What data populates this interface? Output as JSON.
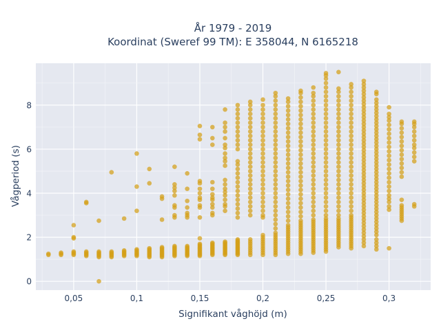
{
  "chart_data": {
    "type": "scatter",
    "title_line1": "År 1979 - 2019",
    "title_line2": "Koordinat (Sweref 99 TM): E 358044, N 6165218",
    "xlabel": "Signifikant våghöjd (m)",
    "ylabel": "Vågperiod (s)",
    "xlim": [
      0.02,
      0.333
    ],
    "ylim": [
      -0.4,
      9.9
    ],
    "x_ticks": [
      0.05,
      0.1,
      0.15,
      0.2,
      0.25,
      0.3
    ],
    "x_tick_labels": [
      "0,05",
      "0,1",
      "0,15",
      "0,2",
      "0,25",
      "0,3"
    ],
    "y_ticks": [
      0,
      2,
      4,
      6,
      8
    ],
    "y_tick_labels": [
      "0",
      "2",
      "4",
      "6",
      "8"
    ],
    "grid": true,
    "marker_color": "#D4A017",
    "plot_background": "#E5E8F0",
    "columns": [
      {
        "x": 0.03,
        "y": [
          1.2,
          1.25
        ]
      },
      {
        "x": 0.04,
        "y": [
          1.2,
          1.25,
          1.3
        ]
      },
      {
        "x": 0.05,
        "y": [
          1.2,
          1.25,
          1.3,
          1.35,
          1.95,
          2.0,
          2.55
        ]
      },
      {
        "x": 0.06,
        "y": [
          1.15,
          1.2,
          1.25,
          1.3,
          1.35,
          3.55,
          3.6
        ]
      },
      {
        "x": 0.07,
        "y": [
          0.0,
          1.1,
          1.15,
          1.2,
          1.25,
          1.3,
          1.35,
          2.75
        ]
      },
      {
        "x": 0.08,
        "y": [
          1.1,
          1.15,
          1.2,
          1.25,
          1.3,
          1.35,
          4.95
        ]
      },
      {
        "x": 0.09,
        "y": [
          1.15,
          1.2,
          1.25,
          1.3,
          1.35,
          1.4,
          2.85
        ]
      },
      {
        "x": 0.1,
        "y": [
          1.15,
          1.2,
          1.25,
          1.3,
          1.35,
          1.4,
          1.45,
          3.2,
          4.3,
          5.8
        ]
      },
      {
        "x": 0.11,
        "y": [
          1.1,
          1.15,
          1.2,
          1.25,
          1.3,
          1.35,
          1.4,
          1.45,
          1.5,
          4.45,
          5.1
        ]
      },
      {
        "x": 0.12,
        "y": [
          1.1,
          1.15,
          1.2,
          1.25,
          1.3,
          1.35,
          1.4,
          1.45,
          1.5,
          1.55,
          2.8,
          3.75,
          3.85
        ]
      },
      {
        "x": 0.13,
        "y": [
          1.15,
          1.2,
          1.25,
          1.3,
          1.35,
          1.4,
          1.45,
          1.5,
          1.55,
          1.6,
          2.9,
          3.0,
          3.35,
          3.45,
          3.9,
          4.1,
          4.25,
          4.4,
          5.2
        ]
      },
      {
        "x": 0.14,
        "y": [
          1.15,
          1.2,
          1.25,
          1.3,
          1.35,
          1.4,
          1.45,
          1.5,
          1.55,
          1.6,
          2.9,
          3.0,
          3.1,
          3.35,
          3.65,
          4.2,
          4.9
        ]
      },
      {
        "x": 0.15,
        "y": [
          1.15,
          1.2,
          1.25,
          1.3,
          1.35,
          1.4,
          1.45,
          1.5,
          1.55,
          1.6,
          1.65,
          1.7,
          1.95,
          2.9,
          3.35,
          3.45,
          3.7,
          3.8,
          4.0,
          4.2,
          4.45,
          4.55,
          6.45,
          6.65,
          7.05
        ]
      },
      {
        "x": 0.16,
        "y": [
          1.2,
          1.25,
          1.3,
          1.35,
          1.4,
          1.45,
          1.5,
          1.55,
          1.6,
          1.65,
          1.7,
          1.75,
          3.0,
          3.1,
          3.35,
          3.5,
          3.7,
          3.8,
          3.95,
          4.2,
          4.5,
          6.2,
          6.5,
          7.0
        ]
      },
      {
        "x": 0.17,
        "y": [
          1.2,
          1.25,
          1.3,
          1.35,
          1.4,
          1.45,
          1.5,
          1.55,
          1.6,
          1.65,
          1.7,
          1.75,
          1.8,
          3.2,
          3.4,
          3.5,
          3.7,
          3.9,
          4.05,
          4.2,
          4.4,
          4.6,
          5.25,
          5.45,
          5.6,
          5.8,
          6.05,
          6.2,
          6.5,
          6.8,
          7.0,
          7.2,
          7.8
        ]
      },
      {
        "x": 0.18,
        "y": [
          1.2,
          1.25,
          1.3,
          1.35,
          1.4,
          1.45,
          1.5,
          1.55,
          1.6,
          1.65,
          1.7,
          1.75,
          1.8,
          1.85,
          1.9,
          2.9,
          3.1,
          3.3,
          3.5,
          3.7,
          3.9,
          4.1,
          4.3,
          4.5,
          4.7,
          4.9,
          5.1,
          5.3,
          5.45,
          6.0,
          6.2,
          6.4,
          6.6,
          6.8,
          7.0,
          7.2,
          7.4,
          7.6,
          7.8,
          8.0
        ]
      },
      {
        "x": 0.19,
        "y": [
          1.2,
          1.3,
          1.4,
          1.5,
          1.6,
          1.7,
          1.8,
          1.9,
          3.0,
          3.2,
          3.4,
          3.6,
          3.8,
          4.0,
          4.2,
          4.4,
          4.6,
          4.8,
          5.0,
          5.2,
          5.4,
          5.6,
          5.8,
          6.0,
          6.2,
          6.4,
          6.6,
          6.8,
          7.0,
          7.2,
          7.4,
          7.6,
          7.8,
          8.0,
          8.15
        ]
      },
      {
        "x": 0.2,
        "y": [
          1.2,
          1.3,
          1.4,
          1.5,
          1.6,
          1.7,
          1.8,
          1.9,
          2.0,
          2.1,
          2.9,
          3.0,
          3.2,
          3.4,
          3.6,
          3.8,
          4.0,
          4.2,
          4.4,
          4.6,
          4.8,
          5.0,
          5.2,
          5.4,
          5.6,
          5.8,
          6.0,
          6.2,
          6.4,
          6.6,
          6.8,
          7.0,
          7.2,
          7.4,
          7.6,
          7.8,
          8.0,
          8.25
        ]
      },
      {
        "x": 0.21,
        "y": [
          1.2,
          1.3,
          1.4,
          1.5,
          1.6,
          1.7,
          1.8,
          1.9,
          2.0,
          2.1,
          2.2,
          2.4,
          2.6,
          2.8,
          3.0,
          3.2,
          3.4,
          3.6,
          3.8,
          4.0,
          4.2,
          4.4,
          4.6,
          4.8,
          5.0,
          5.2,
          5.4,
          5.6,
          5.8,
          6.0,
          6.2,
          6.4,
          6.6,
          6.8,
          7.0,
          7.2,
          7.4,
          7.6,
          7.8,
          8.0,
          8.2,
          8.4,
          8.55
        ]
      },
      {
        "x": 0.22,
        "y": [
          1.25,
          1.35,
          1.45,
          1.55,
          1.65,
          1.75,
          1.85,
          1.95,
          2.05,
          2.15,
          2.25,
          2.35,
          2.45,
          2.55,
          2.75,
          2.95,
          3.15,
          3.35,
          3.55,
          3.75,
          3.95,
          4.15,
          4.35,
          4.55,
          4.75,
          4.95,
          5.15,
          5.35,
          5.55,
          5.75,
          5.95,
          6.15,
          6.35,
          6.55,
          6.75,
          6.95,
          7.15,
          7.35,
          7.55,
          7.75,
          7.95,
          8.15,
          8.3
        ]
      },
      {
        "x": 0.23,
        "y": [
          1.25,
          1.35,
          1.45,
          1.55,
          1.65,
          1.75,
          1.85,
          1.95,
          2.05,
          2.15,
          2.25,
          2.35,
          2.45,
          2.55,
          2.65,
          2.75,
          2.95,
          3.15,
          3.35,
          3.55,
          3.75,
          3.95,
          4.15,
          4.35,
          4.55,
          4.75,
          4.95,
          5.15,
          5.35,
          5.55,
          5.75,
          5.95,
          6.15,
          6.35,
          6.55,
          6.75,
          6.95,
          7.15,
          7.35,
          7.55,
          7.75,
          7.95,
          8.15,
          8.35,
          8.55,
          8.65
        ]
      },
      {
        "x": 0.24,
        "y": [
          1.3,
          1.4,
          1.5,
          1.6,
          1.7,
          1.8,
          1.9,
          2.0,
          2.1,
          2.2,
          2.3,
          2.4,
          2.5,
          2.6,
          2.7,
          2.8,
          3.0,
          3.2,
          3.4,
          3.6,
          3.8,
          4.0,
          4.2,
          4.4,
          4.6,
          4.8,
          5.0,
          5.2,
          5.4,
          5.6,
          5.8,
          6.0,
          6.2,
          6.4,
          6.6,
          6.8,
          7.0,
          7.2,
          7.4,
          7.6,
          7.8,
          8.0,
          8.2,
          8.4,
          8.55,
          8.8
        ]
      },
      {
        "x": 0.25,
        "y": [
          1.35,
          1.45,
          1.55,
          1.65,
          1.75,
          1.85,
          1.95,
          2.05,
          2.15,
          2.25,
          2.35,
          2.45,
          2.55,
          2.65,
          2.75,
          2.85,
          3.0,
          3.2,
          3.4,
          3.6,
          3.8,
          4.0,
          4.2,
          4.4,
          4.6,
          4.8,
          5.0,
          5.2,
          5.4,
          5.6,
          5.8,
          6.0,
          6.2,
          6.4,
          6.6,
          6.8,
          7.0,
          7.2,
          7.4,
          7.6,
          7.8,
          8.0,
          8.2,
          8.4,
          8.6,
          8.8,
          9.0,
          9.2,
          9.35,
          9.45
        ]
      },
      {
        "x": 0.26,
        "y": [
          1.55,
          1.65,
          1.75,
          1.85,
          1.95,
          2.05,
          2.15,
          2.25,
          2.35,
          2.45,
          2.55,
          2.65,
          2.75,
          2.85,
          3.0,
          3.2,
          3.4,
          3.6,
          3.8,
          4.0,
          4.2,
          4.4,
          4.6,
          4.8,
          5.0,
          5.2,
          5.4,
          5.6,
          5.8,
          6.0,
          6.2,
          6.4,
          6.6,
          6.8,
          7.0,
          7.2,
          7.4,
          7.6,
          7.8,
          8.0,
          8.2,
          8.4,
          8.6,
          8.75,
          9.5
        ]
      },
      {
        "x": 0.27,
        "y": [
          1.5,
          1.6,
          1.7,
          1.8,
          1.9,
          2.0,
          2.1,
          2.2,
          2.3,
          2.4,
          2.5,
          2.6,
          2.7,
          2.8,
          2.9,
          3.0,
          3.2,
          3.4,
          3.6,
          3.8,
          4.0,
          4.2,
          4.4,
          4.6,
          4.8,
          5.0,
          5.2,
          5.4,
          5.6,
          5.8,
          6.0,
          6.2,
          6.4,
          6.6,
          6.8,
          7.0,
          7.2,
          7.4,
          7.6,
          7.8,
          8.0,
          8.2,
          8.4,
          8.6,
          8.8,
          8.95
        ]
      },
      {
        "x": 0.28,
        "y": [
          1.6,
          1.75,
          1.9,
          2.05,
          2.2,
          2.35,
          2.5,
          2.65,
          2.8,
          2.95,
          3.1,
          3.25,
          3.4,
          3.55,
          3.7,
          3.85,
          4.0,
          4.15,
          4.3,
          4.45,
          4.6,
          4.75,
          4.9,
          5.05,
          5.2,
          5.35,
          5.5,
          5.65,
          5.8,
          5.95,
          6.1,
          6.25,
          6.4,
          6.55,
          6.7,
          6.85,
          7.0,
          7.15,
          7.3,
          7.45,
          7.6,
          7.75,
          7.9,
          8.05,
          8.2,
          8.35,
          8.5,
          8.65,
          8.8,
          8.95,
          9.1
        ]
      },
      {
        "x": 0.29,
        "y": [
          1.45,
          1.6,
          1.75,
          1.9,
          2.1,
          2.25,
          2.4,
          2.55,
          2.7,
          2.85,
          3.0,
          3.15,
          3.3,
          3.45,
          3.6,
          3.75,
          3.9,
          4.05,
          4.2,
          4.35,
          4.5,
          4.65,
          4.8,
          4.95,
          5.1,
          5.25,
          5.4,
          5.55,
          5.7,
          5.85,
          6.0,
          6.15,
          6.3,
          6.45,
          6.6,
          6.75,
          6.9,
          7.05,
          7.2,
          7.35,
          7.5,
          7.65,
          7.8,
          7.95,
          8.1,
          8.25,
          8.5,
          8.6
        ]
      },
      {
        "x": 0.3,
        "y": [
          1.5,
          3.25,
          3.4,
          3.6,
          3.75,
          3.9,
          4.1,
          4.3,
          4.5,
          4.7,
          4.9,
          5.1,
          5.3,
          5.5,
          5.7,
          5.9,
          6.1,
          6.3,
          6.5,
          6.7,
          6.9,
          7.1,
          7.3,
          7.45,
          7.6,
          7.9
        ]
      },
      {
        "x": 0.31,
        "y": [
          2.75,
          2.85,
          2.95,
          3.05,
          3.15,
          3.25,
          3.35,
          3.45,
          3.7,
          4.75,
          4.95,
          5.15,
          5.35,
          5.55,
          5.75,
          5.95,
          6.15,
          6.35,
          6.55,
          6.75,
          6.95,
          7.15,
          7.25
        ]
      },
      {
        "x": 0.32,
        "y": [
          3.4,
          3.5,
          5.45,
          5.65,
          5.85,
          6.05,
          6.2,
          6.4,
          6.6,
          6.8,
          7.0,
          7.15,
          7.25
        ]
      }
    ]
  }
}
